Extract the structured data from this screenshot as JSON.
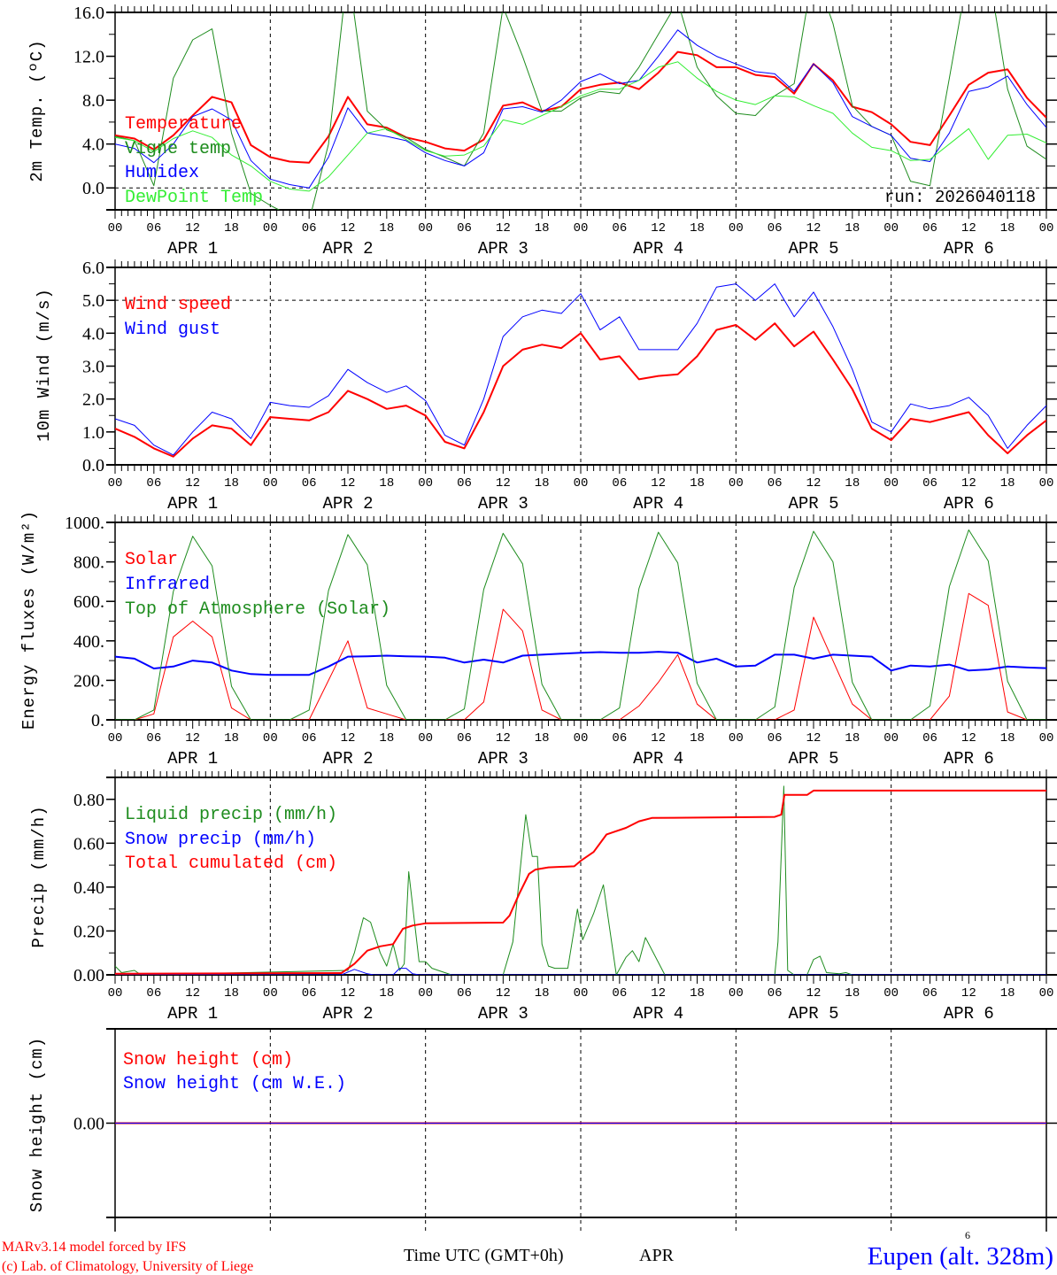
{
  "hours": [
    0,
    3,
    6,
    9,
    12,
    15,
    18,
    21,
    24,
    27,
    30,
    33,
    36,
    39,
    42,
    45,
    48,
    51,
    54,
    57,
    60,
    63,
    66,
    69,
    72,
    75,
    78,
    81,
    84,
    87,
    90,
    93,
    96,
    99,
    102,
    105,
    108,
    111,
    114,
    117,
    120,
    123,
    126,
    129,
    132,
    135,
    138,
    141,
    144
  ],
  "x_axis": {
    "hour_labels": [
      "00",
      "06",
      "12",
      "18"
    ],
    "final_label": "00",
    "day_labels": [
      "APR  1",
      "APR  2",
      "APR  3",
      "APR  4",
      "APR  5",
      "APR  6"
    ],
    "title": "Time UTC (GMT+0h)",
    "month": "APR",
    "day_marker": "6"
  },
  "run_label": "run: 2026040118",
  "footer": {
    "model": "MARv3.14 model forced by IFS",
    "credit": "(c) Lab. of Climatology, University of Liege",
    "station": "Eupen (alt. 328m)"
  },
  "colors": {
    "red": "#ff0000",
    "blue": "#0000ff",
    "green": "#1e8c1e",
    "lightgreen": "#33ee33"
  },
  "chart_data": [
    {
      "type": "line",
      "ylabel": "2m Temp. (ºC)",
      "ylim": [
        -2,
        16
      ],
      "yticks": [
        {
          "v": 0,
          "label": "0.0"
        },
        {
          "v": 4,
          "label": "4.0"
        },
        {
          "v": 8,
          "label": "8.0"
        },
        {
          "v": 12,
          "label": "12.0"
        },
        {
          "v": 16,
          "label": "16.0"
        }
      ],
      "yminor": 2,
      "reference_line": 0,
      "series": [
        {
          "name": "Temperature",
          "color": "#ff0000",
          "width": 2,
          "values": [
            4.8,
            4.5,
            3.5,
            4.8,
            6.6,
            8.3,
            7.8,
            3.9,
            2.8,
            2.4,
            2.3,
            4.7,
            8.3,
            5.8,
            5.5,
            4.6,
            4.2,
            3.6,
            3.4,
            4.4,
            7.5,
            7.8,
            7.0,
            7.4,
            9.0,
            9.4,
            9.6,
            9.0,
            10.5,
            12.4,
            12.1,
            11.0,
            11.0,
            10.3,
            10.1,
            8.6,
            11.3,
            9.8,
            7.4,
            6.9,
            5.8,
            4.2,
            3.9,
            6.6,
            9.4,
            10.5,
            10.8,
            8.2,
            6.4
          ]
        },
        {
          "name": "Vigne temp",
          "color": "#1e8c1e",
          "width": 1,
          "values": [
            4.7,
            4.3,
            0.2,
            10.0,
            13.5,
            14.5,
            5.0,
            -0.5,
            -1.6,
            -2.5,
            -3.0,
            4.0,
            20.0,
            7.0,
            5.3,
            4.6,
            3.5,
            2.8,
            2.0,
            5.0,
            16.5,
            12.0,
            7.0,
            7.0,
            8.2,
            8.8,
            8.6,
            11.0,
            14.0,
            17.0,
            11.0,
            8.4,
            6.8,
            6.6,
            8.4,
            9.5,
            20.0,
            15.0,
            7.5,
            5.6,
            4.8,
            0.6,
            0.2,
            10.0,
            20.0,
            20.0,
            9.0,
            3.8,
            2.6
          ]
        },
        {
          "name": "Humidex",
          "color": "#0000ff",
          "width": 1,
          "values": [
            4.0,
            3.6,
            2.3,
            4.0,
            6.5,
            7.2,
            6.2,
            2.5,
            0.8,
            0.3,
            0.0,
            2.8,
            7.3,
            5.0,
            4.7,
            4.3,
            3.2,
            2.5,
            2.0,
            3.2,
            7.2,
            7.4,
            6.9,
            8.0,
            9.7,
            10.4,
            9.5,
            9.8,
            12.0,
            14.4,
            13.0,
            12.0,
            11.3,
            10.6,
            10.4,
            8.8,
            11.3,
            9.6,
            6.5,
            5.6,
            4.8,
            2.7,
            2.4,
            5.0,
            8.8,
            9.2,
            10.2,
            7.6,
            5.5
          ]
        },
        {
          "name": "DewPoint Temp",
          "color": "#33ee33",
          "width": 1,
          "values": [
            4.6,
            4.3,
            3.3,
            4.5,
            5.2,
            4.6,
            3.0,
            2.0,
            0.6,
            -0.1,
            -0.3,
            1.0,
            3.0,
            5.0,
            5.4,
            4.4,
            3.4,
            2.9,
            3.0,
            3.8,
            6.2,
            5.8,
            6.6,
            7.4,
            8.4,
            9.0,
            9.0,
            9.8,
            11.0,
            11.5,
            10.0,
            8.8,
            8.0,
            7.6,
            8.4,
            8.3,
            7.5,
            6.8,
            5.0,
            3.7,
            3.4,
            2.5,
            2.6,
            4.0,
            5.4,
            2.6,
            4.8,
            4.9,
            4.1
          ]
        }
      ]
    },
    {
      "type": "line",
      "ylabel": "10m Wind (m/s)",
      "ylim": [
        0,
        6
      ],
      "yticks": [
        {
          "v": 0,
          "label": "0.0"
        },
        {
          "v": 1,
          "label": "1.0"
        },
        {
          "v": 2,
          "label": "2.0"
        },
        {
          "v": 3,
          "label": "3.0"
        },
        {
          "v": 4,
          "label": "4.0"
        },
        {
          "v": 5,
          "label": "5.0"
        },
        {
          "v": 6,
          "label": "6.0"
        }
      ],
      "yminor": 0.5,
      "reference_line": 5,
      "series": [
        {
          "name": "Wind speed",
          "color": "#ff0000",
          "width": 2,
          "values": [
            1.1,
            0.85,
            0.5,
            0.25,
            0.8,
            1.2,
            1.1,
            0.6,
            1.45,
            1.4,
            1.35,
            1.6,
            2.25,
            2.0,
            1.7,
            1.8,
            1.5,
            0.7,
            0.5,
            1.6,
            3.0,
            3.5,
            3.65,
            3.55,
            4.0,
            3.2,
            3.3,
            2.6,
            2.7,
            2.75,
            3.3,
            4.1,
            4.25,
            3.8,
            4.3,
            3.6,
            4.05,
            3.2,
            2.3,
            1.1,
            0.75,
            1.4,
            1.3,
            1.45,
            1.6,
            0.9,
            0.35,
            0.9,
            1.35
          ]
        },
        {
          "name": "Wind gust",
          "color": "#0000ff",
          "width": 1,
          "values": [
            1.4,
            1.2,
            0.6,
            0.3,
            1.0,
            1.6,
            1.4,
            0.8,
            1.9,
            1.8,
            1.75,
            2.1,
            2.9,
            2.5,
            2.2,
            2.4,
            1.95,
            0.9,
            0.6,
            2.0,
            3.9,
            4.5,
            4.7,
            4.6,
            5.2,
            4.1,
            4.5,
            3.5,
            3.5,
            3.5,
            4.3,
            5.4,
            5.5,
            5.0,
            5.5,
            4.5,
            5.25,
            4.2,
            2.9,
            1.3,
            1.0,
            1.85,
            1.7,
            1.8,
            2.05,
            1.5,
            0.5,
            1.2,
            1.8
          ]
        }
      ]
    },
    {
      "type": "line",
      "ylabel": "Energy fluxes (W/m²)",
      "ylim": [
        0,
        1000
      ],
      "yticks": [
        {
          "v": 0,
          "label": "0."
        },
        {
          "v": 200,
          "label": "200."
        },
        {
          "v": 400,
          "label": "400."
        },
        {
          "v": 600,
          "label": "600."
        },
        {
          "v": 800,
          "label": "800."
        },
        {
          "v": 1000,
          "label": "1000."
        }
      ],
      "yminor": 100,
      "series": [
        {
          "name": "Solar",
          "color": "#ff0000",
          "width": 1,
          "values": [
            0,
            0,
            30,
            420,
            500,
            420,
            60,
            0,
            0,
            0,
            0,
            200,
            400,
            60,
            30,
            0,
            0,
            0,
            0,
            90,
            560,
            450,
            50,
            0,
            0,
            0,
            0,
            70,
            190,
            330,
            80,
            0,
            0,
            0,
            0,
            50,
            520,
            300,
            80,
            0,
            0,
            0,
            0,
            120,
            640,
            580,
            40,
            0,
            0
          ]
        },
        {
          "name": "Infrared",
          "color": "#0000ff",
          "width": 2,
          "values": [
            320,
            310,
            260,
            270,
            300,
            290,
            250,
            232,
            228,
            228,
            228,
            270,
            320,
            322,
            325,
            322,
            320,
            315,
            290,
            305,
            290,
            325,
            330,
            335,
            340,
            343,
            340,
            340,
            345,
            340,
            290,
            310,
            270,
            275,
            330,
            330,
            310,
            330,
            325,
            320,
            250,
            275,
            270,
            280,
            250,
            255,
            270,
            265,
            262
          ]
        },
        {
          "name": "Top of Atmosphere (Solar)",
          "color": "#1e8c1e",
          "width": 1,
          "values": [
            0,
            0,
            50,
            650,
            930,
            780,
            170,
            0,
            0,
            0,
            50,
            655,
            938,
            785,
            175,
            0,
            0,
            0,
            55,
            660,
            945,
            790,
            180,
            0,
            0,
            0,
            60,
            665,
            950,
            795,
            185,
            0,
            0,
            0,
            65,
            670,
            955,
            800,
            190,
            0,
            0,
            0,
            70,
            675,
            962,
            805,
            195,
            0,
            0
          ]
        }
      ]
    },
    {
      "type": "line",
      "ylabel": "Precip (mm/h)",
      "ylim": [
        0,
        0.9
      ],
      "yticks": [
        {
          "v": 0,
          "label": "0.00"
        },
        {
          "v": 0.2,
          "label": "0.20"
        },
        {
          "v": 0.4,
          "label": "0.40"
        },
        {
          "v": 0.6,
          "label": "0.60"
        },
        {
          "v": 0.8,
          "label": "0.80"
        }
      ],
      "yminor": 0.1,
      "series": [
        {
          "name": "Liquid precip (mm/h)",
          "color": "#1e8c1e",
          "width": 1,
          "points": [
            [
              0,
              0.04
            ],
            [
              1,
              0.01
            ],
            [
              3,
              0.02
            ],
            [
              4,
              0
            ],
            [
              36,
              0.02
            ],
            [
              37,
              0.1
            ],
            [
              38.4,
              0.26
            ],
            [
              39.5,
              0.24
            ],
            [
              41,
              0.1
            ],
            [
              42,
              0.04
            ],
            [
              43,
              0.14
            ],
            [
              44,
              0.02
            ],
            [
              44.7,
              0.05
            ],
            [
              45.4,
              0.47
            ],
            [
              47,
              0.06
            ],
            [
              48,
              0.06
            ],
            [
              49,
              0.03
            ],
            [
              52,
              0
            ],
            [
              60,
              0
            ],
            [
              61.5,
              0.15
            ],
            [
              63.5,
              0.73
            ],
            [
              64.5,
              0.54
            ],
            [
              65.3,
              0.54
            ],
            [
              66,
              0.14
            ],
            [
              67,
              0.04
            ],
            [
              68,
              0.03
            ],
            [
              70,
              0.03
            ],
            [
              71.5,
              0.3
            ],
            [
              72.3,
              0.16
            ],
            [
              74,
              0.28
            ],
            [
              75.5,
              0.41
            ],
            [
              77.5,
              0
            ],
            [
              79,
              0.08
            ],
            [
              80,
              0.11
            ],
            [
              81,
              0.06
            ],
            [
              82,
              0.17
            ],
            [
              85,
              0
            ],
            [
              102,
              0
            ],
            [
              102.5,
              0.15
            ],
            [
              103.4,
              0.86
            ],
            [
              104,
              0.02
            ],
            [
              105,
              0
            ],
            [
              107,
              0
            ],
            [
              108,
              0.07
            ],
            [
              109,
              0.085
            ],
            [
              110,
              0.01
            ],
            [
              112,
              0.005
            ],
            [
              113,
              0.01
            ],
            [
              114,
              0
            ],
            [
              144,
              0
            ]
          ]
        },
        {
          "name": "Snow precip (mm/h)",
          "color": "#0000ff",
          "width": 1,
          "points": [
            [
              0,
              0
            ],
            [
              35,
              0
            ],
            [
              37,
              0.025
            ],
            [
              39,
              0.005
            ],
            [
              40,
              0
            ],
            [
              43,
              0
            ],
            [
              44,
              0.03
            ],
            [
              45,
              0.03
            ],
            [
              46,
              0.005
            ],
            [
              47,
              0
            ],
            [
              144,
              0
            ]
          ]
        },
        {
          "name": "Total cumulated (cm)",
          "color": "#ff0000",
          "width": 2,
          "points": [
            [
              0,
              0.005
            ],
            [
              35,
              0.008
            ],
            [
              37,
              0.05
            ],
            [
              39,
              0.11
            ],
            [
              41,
              0.13
            ],
            [
              43,
              0.14
            ],
            [
              44.5,
              0.21
            ],
            [
              46,
              0.225
            ],
            [
              48,
              0.235
            ],
            [
              60,
              0.238
            ],
            [
              61,
              0.27
            ],
            [
              62.5,
              0.37
            ],
            [
              64,
              0.46
            ],
            [
              65,
              0.48
            ],
            [
              67,
              0.49
            ],
            [
              71,
              0.495
            ],
            [
              72,
              0.52
            ],
            [
              74,
              0.56
            ],
            [
              76,
              0.64
            ],
            [
              77,
              0.65
            ],
            [
              79,
              0.67
            ],
            [
              81,
              0.7
            ],
            [
              83,
              0.715
            ],
            [
              102,
              0.72
            ],
            [
              103,
              0.73
            ],
            [
              103.5,
              0.82
            ],
            [
              107,
              0.82
            ],
            [
              108,
              0.84
            ],
            [
              144,
              0.84
            ]
          ]
        }
      ]
    },
    {
      "type": "line",
      "ylabel": "Snow height (cm)",
      "ylim": [
        -1,
        1
      ],
      "yticks": [
        {
          "v": 0,
          "label": "0.00"
        }
      ],
      "yminor": 0,
      "series": [
        {
          "name": "Snow height (cm)",
          "color": "#ff0000",
          "width": 2,
          "points": [
            [
              0,
              0
            ],
            [
              144,
              0
            ]
          ]
        },
        {
          "name": "Snow height (cm W.E.)",
          "color": "#0000ff",
          "width": 1,
          "points": [
            [
              0,
              0
            ],
            [
              144,
              0
            ]
          ],
          "hidden_under": true
        }
      ]
    }
  ]
}
